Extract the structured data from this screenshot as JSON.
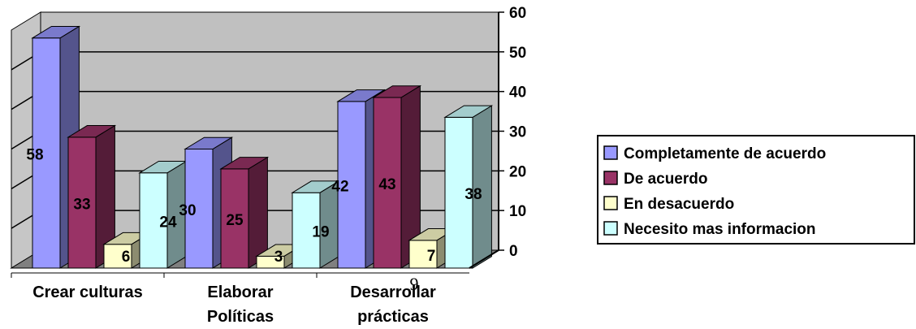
{
  "chart_data": {
    "type": "bar",
    "style": "3d-clustered-column",
    "categories": [
      [
        "Crear culturas"
      ],
      [
        "Elaborar",
        "Políticas"
      ],
      [
        "Desarrollar",
        "prácticas"
      ]
    ],
    "series": [
      {
        "name": "Completamente de acuerdo",
        "values": [
          58,
          30,
          42
        ],
        "color": "#9999FF"
      },
      {
        "name": "De acuerdo",
        "values": [
          33,
          25,
          43
        ],
        "color": "#993366"
      },
      {
        "name": "En desacuerdo",
        "values": [
          6,
          3,
          7
        ],
        "color": "#FFFFCC"
      },
      {
        "name": "Necesito mas informacion",
        "values": [
          24,
          19,
          38
        ],
        "color": "#CCFFFF"
      }
    ],
    "data_labels": [
      "58",
      "30",
      "42",
      "33",
      "25",
      "43",
      "6",
      "3",
      "7",
      "24",
      "19",
      "38"
    ],
    "y_axis": {
      "position": "right",
      "ylim": [
        0,
        60
      ],
      "ticks": [
        0,
        10,
        20,
        30,
        40,
        50,
        60
      ]
    },
    "legend": "right",
    "grid": true,
    "wall_color": "#C0C0C0",
    "stray_text": "9"
  }
}
